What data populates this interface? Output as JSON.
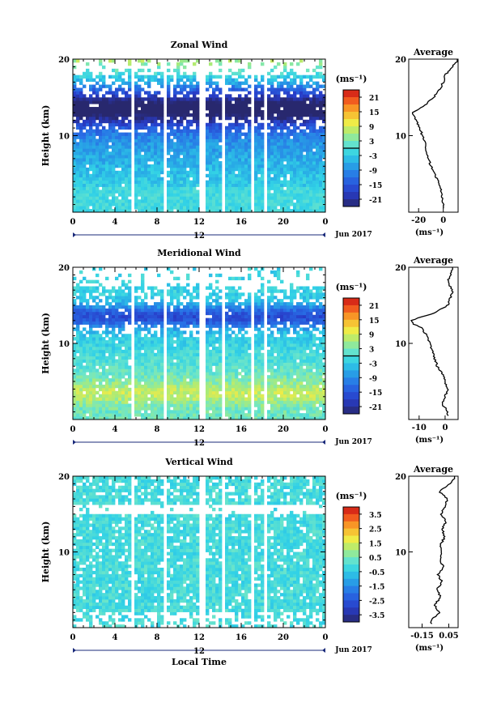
{
  "chart_data": [
    {
      "type": "heatmap",
      "title": "Zonal Wind",
      "ylabel": "Height (km)",
      "xlabel": "",
      "ylim": [
        0,
        20
      ],
      "xlim": [
        0,
        24
      ],
      "x_ticks": [
        "0",
        "4",
        "8",
        "12",
        "16",
        "20",
        "0"
      ],
      "y_ticks": [
        "10",
        "20"
      ],
      "date_label": "12",
      "date_right": "Jun 2017",
      "colorbar": {
        "unit": "(ms⁻¹)",
        "ticks": [
          "21",
          "15",
          "9",
          "3",
          "-3",
          "-9",
          "-15",
          "-21"
        ],
        "range": [
          -24,
          24
        ],
        "zero_line_value": 0
      },
      "average": {
        "title": "Average",
        "x_ticks": [
          "-20",
          "0"
        ],
        "xlim": [
          -28,
          12
        ],
        "xunit": "(ms⁻¹)",
        "heights": [
          1,
          2,
          3,
          4,
          5,
          6,
          7,
          8,
          9,
          10,
          11,
          12,
          12.5,
          13,
          13.5,
          14,
          15,
          16,
          17,
          18,
          18.5,
          19,
          19.5,
          20
        ],
        "values": [
          0,
          -1,
          -2,
          -4,
          -7,
          -10,
          -12,
          -14,
          -15,
          -17,
          -19,
          -22,
          -24,
          -25,
          -20,
          -15,
          -8,
          -3,
          0,
          2,
          5,
          7,
          10,
          12
        ]
      }
    },
    {
      "type": "heatmap",
      "title": "Meridional Wind",
      "ylabel": "Height (km)",
      "xlabel": "",
      "ylim": [
        0,
        20
      ],
      "xlim": [
        0,
        24
      ],
      "x_ticks": [
        "0",
        "4",
        "8",
        "12",
        "16",
        "20",
        "0"
      ],
      "y_ticks": [
        "10",
        "20"
      ],
      "date_label": "12",
      "date_right": "Jun 2017",
      "colorbar": {
        "unit": "(ms⁻¹)",
        "ticks": [
          "21",
          "15",
          "9",
          "3",
          "-3",
          "-9",
          "-15",
          "-21"
        ],
        "range": [
          -24,
          24
        ],
        "zero_line_value": 0
      },
      "average": {
        "title": "Average",
        "x_ticks": [
          "-10",
          "0"
        ],
        "xlim": [
          -14,
          5
        ],
        "xunit": "(ms⁻¹)",
        "heights": [
          1,
          2,
          3,
          4,
          5,
          6,
          7,
          8,
          9,
          10,
          11,
          12,
          12.5,
          13,
          13.5,
          14,
          15,
          16,
          17,
          18,
          19,
          20
        ],
        "values": [
          1,
          -1,
          0,
          1,
          0,
          -1,
          -3,
          -4,
          -5,
          -6,
          -7,
          -9,
          -12,
          -13,
          -9,
          -4,
          1,
          2,
          3,
          1,
          2,
          3
        ]
      }
    },
    {
      "type": "heatmap",
      "title": "Vertical Wind",
      "ylabel": "Height (km)",
      "xlabel": "Local Time",
      "ylim": [
        0,
        20
      ],
      "xlim": [
        0,
        24
      ],
      "x_ticks": [
        "0",
        "4",
        "8",
        "12",
        "16",
        "20",
        "0"
      ],
      "y_ticks": [
        "10",
        "20"
      ],
      "date_label": "12",
      "date_right": "Jun 2017",
      "colorbar": {
        "unit": "(ms⁻¹)",
        "ticks": [
          "3.5",
          "2.5",
          "1.5",
          "0.5",
          "-0.5",
          "-1.5",
          "-2.5",
          "-3.5"
        ],
        "range": [
          -4,
          4
        ],
        "zero_line_value": null
      },
      "average": {
        "title": "Average",
        "x_ticks": [
          "-0.15",
          "0.05"
        ],
        "xlim": [
          -0.25,
          0.12
        ],
        "xunit": "(ms⁻¹)",
        "heights": [
          1,
          2,
          3,
          4,
          5,
          6,
          7,
          8,
          9,
          10,
          11,
          12,
          13,
          14,
          15,
          16,
          17,
          18,
          19,
          20
        ],
        "values": [
          -0.08,
          -0.02,
          -0.06,
          -0.01,
          -0.04,
          0.0,
          -0.03,
          0.01,
          -0.02,
          0.0,
          -0.01,
          0.02,
          0.0,
          0.03,
          -0.01,
          0.02,
          0.04,
          -0.02,
          0.06,
          0.1
        ]
      }
    }
  ],
  "gaps_hours": [
    5.8,
    8.8,
    12.3,
    14.3,
    17.2,
    18.2
  ]
}
